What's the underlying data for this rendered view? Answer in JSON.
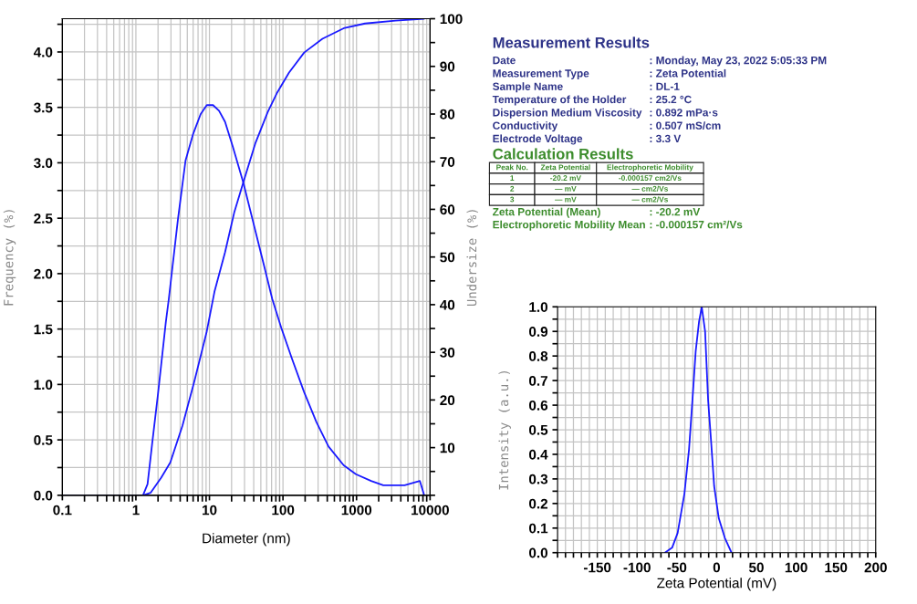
{
  "chart_data": [
    {
      "type": "line",
      "xlabel": "Diameter (nm)",
      "ylabel": "Frequency (%)",
      "y2label": "Undersize (%)",
      "log": "x",
      "grid": true,
      "xlim": [
        0.1,
        10000
      ],
      "xticks": [
        0.1,
        1,
        10,
        100,
        1000,
        10000
      ],
      "ylim": [
        0,
        4.3
      ],
      "yticks": [
        {
          "value": 0,
          "label": "0.0"
        },
        {
          "value": 0.25,
          "label": null
        },
        {
          "value": 0.5,
          "label": "0.5"
        },
        {
          "value": 0.75,
          "label": null
        },
        {
          "value": 1.0,
          "label": "1.0"
        },
        {
          "value": 1.25,
          "label": null
        },
        {
          "value": 1.5,
          "label": "1.5"
        },
        {
          "value": 1.75,
          "label": null
        },
        {
          "value": 2.0,
          "label": "2.0"
        },
        {
          "value": 2.25,
          "label": null
        },
        {
          "value": 2.5,
          "label": "2.5"
        },
        {
          "value": 2.75,
          "label": null
        },
        {
          "value": 3.0,
          "label": "3.0"
        },
        {
          "value": 3.25,
          "label": null
        },
        {
          "value": 3.5,
          "label": "3.5"
        },
        {
          "value": 3.75,
          "label": null
        },
        {
          "value": 4.0,
          "label": "4.0"
        },
        {
          "value": 4.25,
          "label": null
        }
      ],
      "y2lim": [
        0,
        100
      ],
      "y2ticks": [
        {
          "value": 0,
          "label": null
        },
        {
          "value": 5,
          "label": null
        },
        10,
        {
          "value": 15,
          "label": null
        },
        20,
        {
          "value": 25,
          "label": null
        },
        30,
        {
          "value": 35,
          "label": null
        },
        40,
        {
          "value": 45,
          "label": null
        },
        50,
        {
          "value": 55,
          "label": null
        },
        60,
        {
          "value": 65,
          "label": null
        },
        70,
        {
          "value": 75,
          "label": null
        },
        80,
        {
          "value": 85,
          "label": null
        },
        90,
        {
          "value": 95,
          "label": null
        },
        100
      ],
      "series": [
        {
          "color": "#1a1aff",
          "x": [
            0.1,
            1.25,
            1.44,
            1.66,
            2.01,
            2.55,
            2.8,
            3.73,
            4.73,
            6.0,
            7.6,
            9.2,
            11.2,
            13.5,
            16.3,
            20.7,
            28.9,
            38.5,
            56.3,
            71.5,
            95,
            133,
            194,
            285,
            416,
            670,
            981,
            1580,
            2310,
            4500,
            7250,
            8320
          ],
          "values": [
            0,
            0,
            0.1,
            0.46,
            0.93,
            1.56,
            1.77,
            2.49,
            3.02,
            3.26,
            3.44,
            3.52,
            3.52,
            3.47,
            3.37,
            3.15,
            2.82,
            2.49,
            2.05,
            1.77,
            1.51,
            1.23,
            0.93,
            0.66,
            0.44,
            0.27,
            0.19,
            0.13,
            0.09,
            0.09,
            0.13,
            0
          ]
        },
        {
          "color": "#1a1aff",
          "axis": "y2",
          "x": [
            1.25,
            1.58,
            2.21,
            2.94,
            4.3,
            6.3,
            9.2,
            11.7,
            16.3,
            21.7,
            28.9,
            42.4,
            62,
            82,
            121,
            194,
            344,
            670,
            1306,
            3390,
            8320
          ],
          "values": [
            0,
            0.5,
            3.7,
            6.9,
            14.6,
            24.2,
            34.4,
            42.7,
            51.0,
            59.3,
            65.7,
            74.0,
            80.4,
            84.3,
            88.7,
            92.9,
            95.8,
            98.0,
            99.0,
            99.6,
            100
          ]
        }
      ]
    },
    {
      "type": "other",
      "title": "Measurement Results",
      "subtitle": "Calculation Results",
      "annotations": [
        "Date",
        ": Monday, May 23, 2022 5:05:33 PM",
        "Measurement Type",
        ": Zeta Potential",
        "Sample Name",
        ": DL-1",
        "Temperature of the Holder",
        ": 25.2 °C",
        "Dispersion Medium Viscosity",
        ": 0.892 mPa·s",
        "Conductivity",
        ": 0.507 mS/cm",
        "Electrode Voltage",
        ": 3.3 V",
        "Peak No.",
        "Zeta Potential",
        "Electrophoretic Mobility",
        "1",
        "-20.2 mV",
        "-0.000157 cm2/Vs",
        "2",
        "— mV",
        "— cm2/Vs",
        "3",
        "— mV",
        "— cm2/Vs",
        "Zeta Potential (Mean)",
        ": -20.2 mV",
        "Electrophoretic Mobility Mean",
        ": -0.000157 cm²/Vs"
      ]
    },
    {
      "type": "line",
      "xlabel": "Zeta Potential (mV)",
      "ylabel": "Intensity (a.u.)",
      "grid": true,
      "xlim": [
        -200,
        200
      ],
      "xticks": [
        {
          "value": -200,
          "label": null
        },
        {
          "value": -190,
          "label": null
        },
        {
          "value": -180,
          "label": null
        },
        {
          "value": -170,
          "label": null
        },
        {
          "value": -160,
          "label": null
        },
        -150,
        {
          "value": -140,
          "label": null
        },
        {
          "value": -130,
          "label": null
        },
        {
          "value": -120,
          "label": null
        },
        {
          "value": -110,
          "label": null
        },
        -100,
        {
          "value": -90,
          "label": null
        },
        {
          "value": -80,
          "label": null
        },
        {
          "value": -70,
          "label": null
        },
        {
          "value": -60,
          "label": null
        },
        -50,
        {
          "value": -40,
          "label": null
        },
        {
          "value": -30,
          "label": null
        },
        {
          "value": -20,
          "label": null
        },
        {
          "value": -10,
          "label": null
        },
        0,
        {
          "value": 10,
          "label": null
        },
        {
          "value": 20,
          "label": null
        },
        {
          "value": 30,
          "label": null
        },
        {
          "value": 40,
          "label": null
        },
        50,
        {
          "value": 60,
          "label": null
        },
        {
          "value": 70,
          "label": null
        },
        {
          "value": 80,
          "label": null
        },
        {
          "value": 90,
          "label": null
        },
        100,
        {
          "value": 110,
          "label": null
        },
        {
          "value": 120,
          "label": null
        },
        {
          "value": 130,
          "label": null
        },
        {
          "value": 140,
          "label": null
        },
        150,
        {
          "value": 160,
          "label": null
        },
        {
          "value": 170,
          "label": null
        },
        {
          "value": 180,
          "label": null
        },
        {
          "value": 190,
          "label": null
        },
        200
      ],
      "ylim": [
        0,
        1.0
      ],
      "yticks": [
        {
          "value": 0,
          "label": "0.0"
        },
        {
          "value": 0.05,
          "label": null
        },
        {
          "value": 0.1,
          "label": "0.1"
        },
        {
          "value": 0.15,
          "label": null
        },
        {
          "value": 0.2,
          "label": "0.2"
        },
        {
          "value": 0.25,
          "label": null
        },
        {
          "value": 0.3,
          "label": "0.3"
        },
        {
          "value": 0.35,
          "label": null
        },
        {
          "value": 0.4,
          "label": "0.4"
        },
        {
          "value": 0.45,
          "label": null
        },
        {
          "value": 0.5,
          "label": "0.5"
        },
        {
          "value": 0.55,
          "label": null
        },
        {
          "value": 0.6,
          "label": "0.6"
        },
        {
          "value": 0.65,
          "label": null
        },
        {
          "value": 0.7,
          "label": "0.7"
        },
        {
          "value": 0.75,
          "label": null
        },
        {
          "value": 0.8,
          "label": "0.8"
        },
        {
          "value": 0.85,
          "label": null
        },
        {
          "value": 0.9,
          "label": "0.9"
        },
        {
          "value": 0.95,
          "label": null
        },
        {
          "value": 1.0,
          "label": "1.0"
        }
      ],
      "series": [
        {
          "color": "#1a1aff",
          "x": [
            -65,
            -56,
            -49,
            -40.5,
            -34.7,
            -29.8,
            -26.3,
            -22.1,
            -18.7,
            -14.5,
            -10.7,
            -6.9,
            -3.1,
            2.7,
            10.3,
            18.7
          ],
          "values": [
            0,
            0.02,
            0.08,
            0.24,
            0.42,
            0.65,
            0.82,
            0.94,
            1.0,
            0.9,
            0.62,
            0.45,
            0.27,
            0.14,
            0.06,
            0
          ]
        }
      ]
    }
  ]
}
